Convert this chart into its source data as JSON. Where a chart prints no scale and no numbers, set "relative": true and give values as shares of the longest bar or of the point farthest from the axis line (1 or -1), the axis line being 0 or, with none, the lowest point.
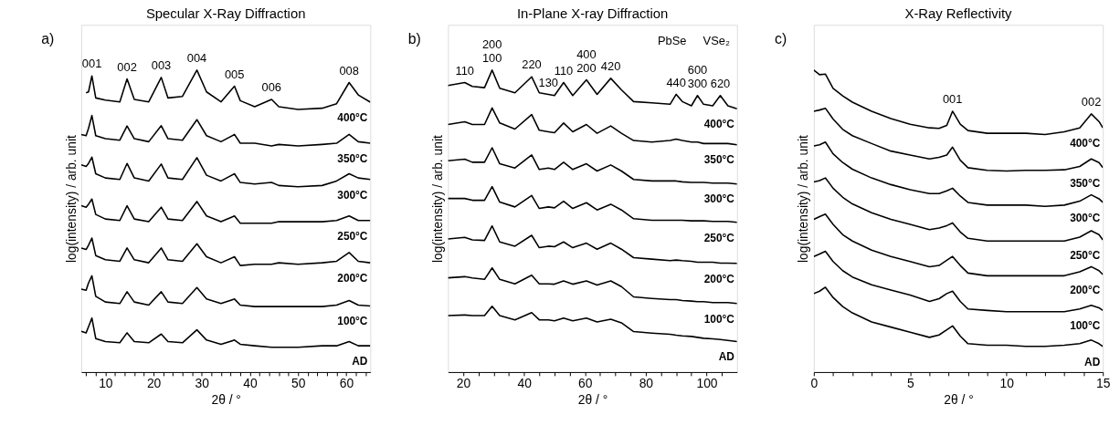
{
  "chart_data": [
    {
      "type": "line",
      "title": "Specular X-Ray Diffraction",
      "xlabel": "2θ / °",
      "ylabel": "log(intensity) / arb. unit",
      "relative": true,
      "tick_labels": "x",
      "line_style": "solid",
      "marker": "none",
      "xlim": [
        5,
        65
      ],
      "xticks": [
        {
          "value": 6,
          "label": null
        },
        {
          "value": 8,
          "label": null
        },
        10,
        {
          "value": 12,
          "label": null
        },
        {
          "value": 14,
          "label": null
        },
        {
          "value": 16,
          "label": null
        },
        {
          "value": 18,
          "label": null
        },
        20,
        {
          "value": 22,
          "label": null
        },
        {
          "value": 24,
          "label": null
        },
        {
          "value": 26,
          "label": null
        },
        {
          "value": 28,
          "label": null
        },
        30,
        {
          "value": 32,
          "label": null
        },
        {
          "value": 34,
          "label": null
        },
        {
          "value": 36,
          "label": null
        },
        {
          "value": 38,
          "label": null
        },
        40,
        {
          "value": 42,
          "label": null
        },
        {
          "value": 44,
          "label": null
        },
        {
          "value": 46,
          "label": null
        },
        {
          "value": 48,
          "label": null
        },
        50,
        {
          "value": 52,
          "label": null
        },
        {
          "value": 54,
          "label": null
        },
        {
          "value": 56,
          "label": null
        },
        {
          "value": 58,
          "label": null
        },
        60,
        {
          "value": 62,
          "label": null
        },
        {
          "value": 64,
          "label": null
        }
      ],
      "x": [
        5,
        6,
        6.5,
        7.2,
        8,
        10,
        13,
        14.5,
        16,
        19,
        21.6,
        23,
        26,
        29,
        31,
        34,
        36.8,
        38,
        41,
        44.5,
        46,
        50,
        55,
        58,
        60.6,
        62.5,
        65
      ],
      "series": [
        {
          "name": "400°C",
          "color": "#000000",
          "values": [
            null,
            0.925,
            0.928,
            0.981,
            0.908,
            0.901,
            0.895,
            0.971,
            0.903,
            0.895,
            0.976,
            0.908,
            0.913,
            1.0,
            0.928,
            0.895,
            0.947,
            0.899,
            0.879,
            0.903,
            0.879,
            0.87,
            0.874,
            0.889,
            0.959,
            0.918,
            0.894
          ]
        },
        {
          "name": "350°C",
          "color": "#000000",
          "values": [
            0.787,
            0.783,
            0.807,
            0.85,
            0.783,
            0.773,
            0.768,
            0.815,
            0.773,
            0.763,
            0.816,
            0.773,
            0.768,
            0.836,
            0.783,
            0.763,
            0.787,
            0.758,
            0.758,
            0.749,
            0.754,
            0.749,
            0.754,
            0.758,
            0.787,
            0.763,
            0.758
          ]
        },
        {
          "name": "300°C",
          "color": "#000000",
          "values": [
            0.686,
            0.681,
            0.691,
            0.712,
            0.657,
            0.643,
            0.638,
            0.691,
            0.643,
            0.633,
            0.689,
            0.643,
            0.638,
            0.71,
            0.652,
            0.633,
            0.657,
            0.628,
            0.623,
            0.628,
            0.618,
            0.614,
            0.618,
            0.633,
            0.657,
            0.643,
            0.638
          ]
        },
        {
          "name": "250°C",
          "color": "#000000",
          "values": [
            0.551,
            0.546,
            0.556,
            0.573,
            0.522,
            0.507,
            0.502,
            0.551,
            0.507,
            0.498,
            0.546,
            0.507,
            0.502,
            0.565,
            0.517,
            0.498,
            0.517,
            0.493,
            0.493,
            0.493,
            0.498,
            0.498,
            0.498,
            0.502,
            0.517,
            0.502,
            0.502
          ]
        },
        {
          "name": "200°C",
          "color": "#000000",
          "values": [
            0.411,
            0.406,
            0.42,
            0.444,
            0.386,
            0.372,
            0.367,
            0.411,
            0.372,
            0.362,
            0.411,
            0.372,
            0.367,
            0.425,
            0.382,
            0.362,
            0.382,
            0.353,
            0.357,
            0.357,
            0.362,
            0.357,
            0.362,
            0.367,
            0.396,
            0.367,
            0.362
          ]
        },
        {
          "name": "100°C",
          "color": "#000000",
          "values": [
            0.275,
            0.271,
            0.295,
            0.319,
            0.251,
            0.232,
            0.227,
            0.266,
            0.232,
            0.222,
            0.266,
            0.232,
            0.227,
            0.28,
            0.242,
            0.227,
            0.242,
            0.222,
            0.217,
            0.217,
            0.217,
            0.217,
            0.217,
            0.222,
            0.237,
            0.222,
            0.219
          ]
        },
        {
          "name": "AD",
          "color": "#000000",
          "values": [
            0.135,
            0.13,
            0.15,
            0.179,
            0.111,
            0.101,
            0.097,
            0.13,
            0.101,
            0.097,
            0.126,
            0.101,
            0.097,
            0.14,
            0.106,
            0.092,
            0.106,
            0.092,
            0.087,
            0.082,
            0.082,
            0.082,
            0.087,
            0.087,
            0.101,
            0.087,
            0.087
          ]
        }
      ],
      "annotations": [
        "a)",
        {
          "text": "001",
          "x": 7.2,
          "y": 0.981
        },
        {
          "text": "002",
          "x": 14.5,
          "y": 0.971
        },
        {
          "text": "003",
          "x": 21.6,
          "y": 0.976
        },
        {
          "text": "004",
          "x": 29,
          "y": 1.0
        },
        {
          "text": "005",
          "x": 36.8,
          "y": 0.947
        },
        {
          "text": "006",
          "x": 44.5,
          "y": 0.903
        },
        {
          "text": "008",
          "x": 60.6,
          "y": 0.959
        }
      ]
    },
    {
      "type": "line",
      "title": "In-Plane X-ray Diffraction",
      "xlabel": "2θ / °",
      "ylabel": "log(intensity) / arb. unit",
      "relative": true,
      "tick_labels": "x",
      "line_style": "solid",
      "marker": "none",
      "xlim": [
        15,
        110
      ],
      "xticks": [
        20,
        {
          "value": 25,
          "label": null
        },
        {
          "value": 30,
          "label": null
        },
        {
          "value": 35,
          "label": null
        },
        40,
        {
          "value": 45,
          "label": null
        },
        {
          "value": 50,
          "label": null
        },
        {
          "value": 55,
          "label": null
        },
        60,
        {
          "value": 65,
          "label": null
        },
        {
          "value": 70,
          "label": null
        },
        {
          "value": 75,
          "label": null
        },
        80,
        {
          "value": 85,
          "label": null
        },
        {
          "value": 90,
          "label": null
        },
        {
          "value": 95,
          "label": null
        },
        100,
        {
          "value": 105,
          "label": null
        }
      ],
      "x": [
        15,
        20.5,
        23,
        27,
        29.5,
        32,
        37,
        42.5,
        45,
        48,
        50,
        53,
        56,
        60.5,
        64,
        68.5,
        72,
        76,
        82,
        88,
        90,
        92,
        95,
        97,
        99,
        102,
        104.5,
        107,
        110
      ],
      "series": [
        {
          "name": "400°C",
          "color": "#000000",
          "values": [
            0.949,
            0.959,
            0.946,
            0.942,
            1.0,
            0.94,
            0.925,
            0.978,
            0.925,
            0.92,
            0.916,
            0.959,
            0.916,
            0.968,
            0.92,
            0.973,
            0.935,
            0.896,
            0.892,
            0.887,
            0.92,
            0.896,
            0.882,
            0.916,
            0.887,
            0.882,
            0.916,
            0.882,
            0.872
          ]
        },
        {
          "name": "350°C",
          "color": "#000000",
          "values": [
            0.82,
            0.829,
            0.82,
            0.82,
            0.875,
            0.825,
            0.805,
            0.853,
            0.801,
            0.796,
            0.793,
            0.825,
            0.796,
            0.82,
            0.791,
            0.815,
            0.791,
            0.767,
            0.762,
            0.767,
            0.772,
            0.767,
            0.762,
            0.762,
            0.757,
            0.757,
            0.757,
            0.757,
            0.753
          ]
        },
        {
          "name": "300°C",
          "color": "#000000",
          "values": [
            0.7,
            0.705,
            0.695,
            0.695,
            0.743,
            0.69,
            0.676,
            0.719,
            0.671,
            0.676,
            0.671,
            0.695,
            0.671,
            0.69,
            0.666,
            0.686,
            0.666,
            0.638,
            0.633,
            0.633,
            0.633,
            0.63,
            0.628,
            0.628,
            0.628,
            0.626,
            0.626,
            0.626,
            0.623
          ]
        },
        {
          "name": "250°C",
          "color": "#000000",
          "values": [
            0.575,
            0.575,
            0.569,
            0.569,
            0.614,
            0.563,
            0.547,
            0.585,
            0.542,
            0.547,
            0.544,
            0.566,
            0.542,
            0.561,
            0.537,
            0.556,
            0.537,
            0.508,
            0.503,
            0.503,
            0.503,
            0.503,
            0.501,
            0.501,
            0.501,
            0.499,
            0.499,
            0.499,
            0.496
          ]
        },
        {
          "name": "200°C",
          "color": "#000000",
          "values": [
            0.441,
            0.446,
            0.438,
            0.436,
            0.484,
            0.431,
            0.417,
            0.453,
            0.412,
            0.417,
            0.415,
            0.431,
            0.412,
            0.427,
            0.407,
            0.427,
            0.407,
            0.379,
            0.374,
            0.369,
            0.371,
            0.369,
            0.367,
            0.364,
            0.364,
            0.364,
            0.361,
            0.361,
            0.36
          ]
        },
        {
          "name": "100°C",
          "color": "#000000",
          "values": [
            0.312,
            0.316,
            0.312,
            0.307,
            0.345,
            0.307,
            0.292,
            0.321,
            0.292,
            0.292,
            0.291,
            0.302,
            0.291,
            0.302,
            0.288,
            0.302,
            0.283,
            0.249,
            0.244,
            0.24,
            0.24,
            0.237,
            0.235,
            0.233,
            0.233,
            0.23,
            0.23,
            0.23,
            0.227
          ]
        },
        {
          "name": "AD",
          "color": "#000000",
          "values": [
            0.187,
            0.189,
            0.187,
            0.187,
            0.218,
            0.187,
            0.173,
            0.197,
            0.173,
            0.173,
            0.17,
            0.179,
            0.17,
            0.179,
            0.166,
            0.175,
            0.163,
            0.134,
            0.129,
            0.125,
            0.122,
            0.12,
            0.118,
            0.115,
            0.112,
            0.11,
            0.108,
            0.105,
            0.101
          ]
        }
      ],
      "annotations": [
        "b)",
        {
          "text": "110",
          "x": 20.5,
          "y": 0.959
        },
        {
          "text": "100",
          "x": 29.5,
          "y": 1.0
        },
        {
          "text": "200",
          "x": 29.5,
          "y": 1.0
        },
        {
          "text": "220",
          "x": 42.5,
          "y": 0.978
        },
        {
          "text": "130",
          "x": 48,
          "y": 0.92
        },
        {
          "text": "110",
          "x": 53,
          "y": 0.959
        },
        {
          "text": "200",
          "x": 60.5,
          "y": 0.968
        },
        {
          "text": "400",
          "x": 60.5,
          "y": 0.968
        },
        {
          "text": "420",
          "x": 68.5,
          "y": 0.973
        },
        {
          "text": "440",
          "x": 90,
          "y": 0.92
        },
        {
          "text": "300",
          "x": 97,
          "y": 0.916
        },
        {
          "text": "600",
          "x": 97,
          "y": 0.916
        },
        {
          "text": "620",
          "x": 104.5,
          "y": 0.916
        },
        "PbSe",
        "VSe₂"
      ]
    },
    {
      "type": "line",
      "title": "X-Ray Reflectivity",
      "xlabel": "2θ / °",
      "ylabel": "log(intensity) / arb. unit",
      "relative": true,
      "tick_labels": "x",
      "line_style": "solid",
      "marker": "none",
      "xlim": [
        0,
        15
      ],
      "xticks": [
        0,
        {
          "value": 1,
          "label": null
        },
        {
          "value": 2,
          "label": null
        },
        {
          "value": 3,
          "label": null
        },
        {
          "value": 4,
          "label": null
        },
        5,
        {
          "value": 6,
          "label": null
        },
        {
          "value": 7,
          "label": null
        },
        {
          "value": 8,
          "label": null
        },
        {
          "value": 9,
          "label": null
        },
        10,
        {
          "value": 11,
          "label": null
        },
        {
          "value": 12,
          "label": null
        },
        {
          "value": 13,
          "label": null
        },
        {
          "value": 14,
          "label": null
        },
        15
      ],
      "x": [
        0,
        0.3,
        0.6,
        1,
        1.5,
        2,
        3,
        4,
        5,
        6,
        6.5,
        6.9,
        7.2,
        7.6,
        8,
        9,
        10,
        11,
        12,
        13,
        13.8,
        14.4,
        14.8,
        15
      ],
      "series": [
        {
          "name": "400°C",
          "color": "#000000",
          "values": [
            1.0,
            0.985,
            0.987,
            0.94,
            0.915,
            0.894,
            0.864,
            0.84,
            0.821,
            0.809,
            0.807,
            0.817,
            0.864,
            0.821,
            0.8,
            0.791,
            0.791,
            0.791,
            0.787,
            0.796,
            0.809,
            0.855,
            0.83,
            0.809
          ]
        },
        {
          "name": "350°C",
          "color": "#000000",
          "values": [
            0.864,
            0.868,
            0.874,
            0.838,
            0.804,
            0.783,
            0.757,
            0.732,
            0.719,
            0.706,
            0.711,
            0.719,
            0.745,
            0.702,
            0.677,
            0.668,
            0.666,
            0.668,
            0.668,
            0.67,
            0.681,
            0.706,
            0.694,
            0.677
          ]
        },
        {
          "name": "300°C",
          "color": "#000000",
          "values": [
            0.749,
            0.753,
            0.762,
            0.723,
            0.694,
            0.672,
            0.643,
            0.621,
            0.604,
            0.591,
            0.591,
            0.6,
            0.609,
            0.583,
            0.562,
            0.553,
            0.553,
            0.553,
            0.549,
            0.553,
            0.566,
            0.587,
            0.574,
            0.562
          ]
        },
        {
          "name": "250°C",
          "color": "#000000",
          "values": [
            0.63,
            0.634,
            0.643,
            0.609,
            0.579,
            0.557,
            0.528,
            0.506,
            0.489,
            0.472,
            0.477,
            0.485,
            0.494,
            0.464,
            0.443,
            0.434,
            0.434,
            0.434,
            0.434,
            0.434,
            0.447,
            0.468,
            0.455,
            0.438
          ]
        },
        {
          "name": "200°C",
          "color": "#000000",
          "values": [
            0.506,
            0.515,
            0.523,
            0.489,
            0.455,
            0.434,
            0.404,
            0.383,
            0.366,
            0.349,
            0.353,
            0.37,
            0.383,
            0.353,
            0.328,
            0.319,
            0.319,
            0.319,
            0.319,
            0.319,
            0.332,
            0.349,
            0.336,
            0.323
          ]
        },
        {
          "name": "100°C",
          "color": "#000000",
          "values": [
            0.383,
            0.391,
            0.4,
            0.366,
            0.336,
            0.315,
            0.289,
            0.272,
            0.255,
            0.234,
            0.243,
            0.26,
            0.268,
            0.234,
            0.209,
            0.204,
            0.2,
            0.2,
            0.2,
            0.2,
            0.209,
            0.221,
            0.213,
            0.204
          ]
        },
        {
          "name": "AD",
          "color": "#000000",
          "values": [
            0.26,
            0.268,
            0.281,
            0.247,
            0.217,
            0.196,
            0.166,
            0.149,
            0.132,
            0.115,
            0.123,
            0.14,
            0.153,
            0.119,
            0.094,
            0.089,
            0.089,
            0.085,
            0.085,
            0.089,
            0.094,
            0.106,
            0.094,
            0.085
          ]
        }
      ],
      "annotations": [
        "c)",
        {
          "text": "001",
          "x": 7.2,
          "y": 0.864
        },
        {
          "text": "002",
          "x": 14.4,
          "y": 0.855
        }
      ]
    }
  ]
}
